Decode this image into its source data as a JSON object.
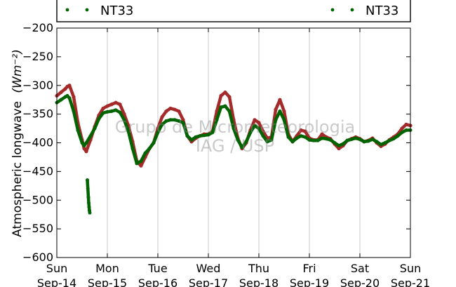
{
  "chart_data": {
    "type": "scatter",
    "ylabel": "Atmospheric longwave",
    "ylabel_unit": "(Wm⁻²)",
    "ylim": [
      -600,
      -200
    ],
    "yticks": [
      -200,
      -250,
      -300,
      -350,
      -400,
      -450,
      -500,
      -550,
      -600
    ],
    "xlim": [
      "2014-09-14",
      "2014-09-21"
    ],
    "xtick_days": [
      "Sun",
      "Mon",
      "Tue",
      "Wed",
      "Thu",
      "Fri",
      "Sat",
      "Sun"
    ],
    "xtick_dates": [
      "Sep-14",
      "Sep-15",
      "Sep-16",
      "Sep-17",
      "Sep-18",
      "Sep-19",
      "Sep-20",
      "Sep-21"
    ],
    "grid": "vertical",
    "legend": {
      "placement": "top",
      "entries": [
        "NT33",
        "NT33"
      ]
    },
    "watermark": [
      "Grupo de Micrometeorologia",
      "IAG / USP"
    ],
    "colors": {
      "series1": "#a52a2a",
      "series2": "#006400"
    },
    "series": [
      {
        "name": "NT33",
        "color": "#a52a2a",
        "x": [
          "2014-09-14 00:00",
          "2014-09-14 02:00",
          "2014-09-14 04:00",
          "2014-09-14 05:00",
          "2014-09-14 06:00",
          "2014-09-14 08:00",
          "2014-09-14 10:00",
          "2014-09-14 12:00",
          "2014-09-14 13:00",
          "2014-09-14 14:00",
          "2014-09-14 16:00",
          "2014-09-14 18:00",
          "2014-09-14 20:00",
          "2014-09-14 22:00",
          "2014-09-15 00:00",
          "2014-09-15 02:00",
          "2014-09-15 04:00",
          "2014-09-15 06:00",
          "2014-09-15 08:00",
          "2014-09-15 10:00",
          "2014-09-15 12:00",
          "2014-09-15 14:00",
          "2014-09-15 16:00",
          "2014-09-15 18:00",
          "2014-09-15 20:00",
          "2014-09-15 22:00",
          "2014-09-16 00:00",
          "2014-09-16 02:00",
          "2014-09-16 04:00",
          "2014-09-16 06:00",
          "2014-09-16 08:00",
          "2014-09-16 10:00",
          "2014-09-16 12:00",
          "2014-09-16 14:00",
          "2014-09-16 16:00",
          "2014-09-16 18:00",
          "2014-09-16 20:00",
          "2014-09-16 22:00",
          "2014-09-17 00:00",
          "2014-09-17 02:00",
          "2014-09-17 04:00",
          "2014-09-17 06:00",
          "2014-09-17 08:00",
          "2014-09-17 10:00",
          "2014-09-17 12:00",
          "2014-09-17 14:00",
          "2014-09-17 16:00",
          "2014-09-17 18:00",
          "2014-09-17 20:00",
          "2014-09-17 22:00",
          "2014-09-18 00:00",
          "2014-09-18 02:00",
          "2014-09-18 04:00",
          "2014-09-18 06:00",
          "2014-09-18 08:00",
          "2014-09-18 10:00",
          "2014-09-18 12:00",
          "2014-09-18 14:00",
          "2014-09-18 16:00",
          "2014-09-18 18:00",
          "2014-09-18 20:00",
          "2014-09-18 22:00",
          "2014-09-19 00:00",
          "2014-09-19 02:00",
          "2014-09-19 04:00",
          "2014-09-19 06:00",
          "2014-09-19 08:00",
          "2014-09-19 10:00",
          "2014-09-19 12:00",
          "2014-09-19 14:00",
          "2014-09-19 16:00",
          "2014-09-19 18:00",
          "2014-09-19 20:00",
          "2014-09-19 22:00",
          "2014-09-20 00:00",
          "2014-09-20 02:00",
          "2014-09-20 04:00",
          "2014-09-20 06:00",
          "2014-09-20 08:00",
          "2014-09-20 10:00",
          "2014-09-20 12:00",
          "2014-09-20 14:00",
          "2014-09-20 16:00",
          "2014-09-20 18:00",
          "2014-09-20 20:00",
          "2014-09-20 22:00",
          "2014-09-21 00:00"
        ],
        "y": [
          -318,
          -312,
          -306,
          -302,
          -300,
          -320,
          -365,
          -395,
          -410,
          -415,
          -395,
          -372,
          -352,
          -340,
          -336,
          -333,
          -330,
          -333,
          -350,
          -370,
          -398,
          -432,
          -440,
          -425,
          -410,
          -400,
          -375,
          -355,
          -345,
          -340,
          -342,
          -345,
          -360,
          -388,
          -398,
          -392,
          -388,
          -385,
          -385,
          -380,
          -345,
          -318,
          -312,
          -320,
          -360,
          -392,
          -410,
          -400,
          -378,
          -360,
          -365,
          -380,
          -392,
          -390,
          -342,
          -325,
          -345,
          -385,
          -398,
          -388,
          -378,
          -380,
          -392,
          -395,
          -395,
          -385,
          -390,
          -393,
          -402,
          -410,
          -405,
          -396,
          -393,
          -390,
          -393,
          -398,
          -396,
          -392,
          -400,
          -406,
          -402,
          -395,
          -390,
          -385,
          -375,
          -368,
          -370
        ]
      },
      {
        "name": "NT33",
        "color": "#006400",
        "x": [
          "2014-09-14 00:00",
          "2014-09-14 02:00",
          "2014-09-14 04:00",
          "2014-09-14 05:00",
          "2014-09-14 06:00",
          "2014-09-14 08:00",
          "2014-09-14 10:00",
          "2014-09-14 12:00",
          "2014-09-14 13:00",
          "2014-09-14 14:00",
          "2014-09-14 16:00",
          "2014-09-14 18:00",
          "2014-09-14 20:00",
          "2014-09-14 22:00",
          "2014-09-15 00:00",
          "2014-09-15 02:00",
          "2014-09-15 04:00",
          "2014-09-15 06:00",
          "2014-09-15 08:00",
          "2014-09-15 10:00",
          "2014-09-15 12:00",
          "2014-09-15 14:00",
          "2014-09-15 16:00",
          "2014-09-15 18:00",
          "2014-09-15 20:00",
          "2014-09-15 22:00",
          "2014-09-16 00:00",
          "2014-09-16 02:00",
          "2014-09-16 04:00",
          "2014-09-16 06:00",
          "2014-09-16 08:00",
          "2014-09-16 10:00",
          "2014-09-16 12:00",
          "2014-09-16 14:00",
          "2014-09-16 16:00",
          "2014-09-16 18:00",
          "2014-09-16 20:00",
          "2014-09-16 22:00",
          "2014-09-17 00:00",
          "2014-09-17 02:00",
          "2014-09-17 04:00",
          "2014-09-17 06:00",
          "2014-09-17 08:00",
          "2014-09-17 10:00",
          "2014-09-17 12:00",
          "2014-09-17 14:00",
          "2014-09-17 16:00",
          "2014-09-17 18:00",
          "2014-09-17 20:00",
          "2014-09-17 22:00",
          "2014-09-18 00:00",
          "2014-09-18 02:00",
          "2014-09-18 04:00",
          "2014-09-18 06:00",
          "2014-09-18 08:00",
          "2014-09-18 10:00",
          "2014-09-18 12:00",
          "2014-09-18 14:00",
          "2014-09-18 16:00",
          "2014-09-18 18:00",
          "2014-09-18 20:00",
          "2014-09-18 22:00",
          "2014-09-19 00:00",
          "2014-09-19 02:00",
          "2014-09-19 04:00",
          "2014-09-19 06:00",
          "2014-09-19 08:00",
          "2014-09-19 10:00",
          "2014-09-19 12:00",
          "2014-09-19 14:00",
          "2014-09-19 16:00",
          "2014-09-19 18:00",
          "2014-09-19 20:00",
          "2014-09-19 22:00",
          "2014-09-20 00:00",
          "2014-09-20 02:00",
          "2014-09-20 04:00",
          "2014-09-20 06:00",
          "2014-09-20 08:00",
          "2014-09-20 10:00",
          "2014-09-20 12:00",
          "2014-09-20 14:00",
          "2014-09-20 16:00",
          "2014-09-20 18:00",
          "2014-09-20 20:00",
          "2014-09-20 22:00",
          "2014-09-21 00:00",
          "2014-09-14 14:30",
          "2014-09-14 14:45",
          "2014-09-14 15:00",
          "2014-09-14 15:10",
          "2014-09-14 15:20",
          "2014-09-14 15:30",
          "2014-09-14 15:40"
        ],
        "y": [
          -330,
          -325,
          -320,
          -318,
          -322,
          -345,
          -378,
          -400,
          -405,
          -400,
          -388,
          -375,
          -358,
          -348,
          -346,
          -345,
          -343,
          -347,
          -360,
          -380,
          -410,
          -436,
          -432,
          -418,
          -410,
          -400,
          -382,
          -368,
          -362,
          -360,
          -360,
          -362,
          -365,
          -388,
          -395,
          -390,
          -388,
          -387,
          -386,
          -382,
          -360,
          -338,
          -336,
          -345,
          -375,
          -395,
          -408,
          -398,
          -382,
          -370,
          -375,
          -388,
          -398,
          -395,
          -360,
          -345,
          -360,
          -390,
          -398,
          -392,
          -388,
          -390,
          -395,
          -396,
          -396,
          -392,
          -393,
          -395,
          -400,
          -405,
          -402,
          -396,
          -394,
          -392,
          -394,
          -398,
          -397,
          -394,
          -398,
          -403,
          -400,
          -396,
          -393,
          -388,
          -382,
          -378,
          -378,
          -465,
          -480,
          -495,
          -505,
          -512,
          -518,
          -522
        ]
      }
    ]
  }
}
